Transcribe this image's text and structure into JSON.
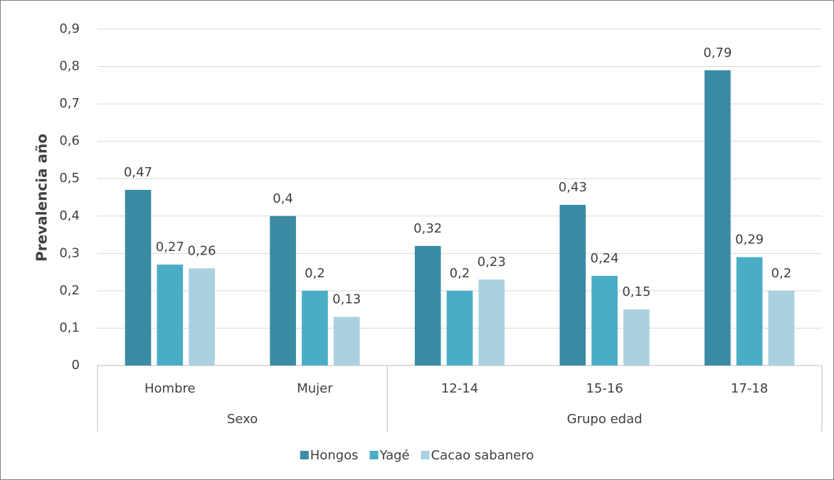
{
  "chart_data": {
    "type": "bar",
    "y_label": "Prevalencia año",
    "category_groups": [
      {
        "name": "Sexo",
        "categories": [
          "Hombre",
          "Mujer"
        ]
      },
      {
        "name": "Grupo edad",
        "categories": [
          "12-14",
          "15-16",
          "17-18"
        ]
      }
    ],
    "series": [
      {
        "name": "Hongos",
        "color": "#3a8ba3",
        "values": [
          0.47,
          0.4,
          0.32,
          0.43,
          0.79
        ],
        "value_labels": [
          "0,47",
          "0,4",
          "0,32",
          "0,43",
          "0,79"
        ]
      },
      {
        "name": "Yagé",
        "color": "#4bacc6",
        "values": [
          0.27,
          0.2,
          0.2,
          0.24,
          0.29
        ],
        "value_labels": [
          "0,27",
          "0,2",
          "0,2",
          "0,24",
          "0,29"
        ]
      },
      {
        "name": "Cacao sabanero",
        "color": "#a9d1df",
        "values": [
          0.26,
          0.13,
          0.23,
          0.15,
          0.2
        ],
        "value_labels": [
          "0,26",
          "0,13",
          "0,23",
          "0,15",
          "0,2"
        ]
      }
    ],
    "ylim": [
      0,
      0.9
    ],
    "yticks": [
      0,
      {
        "value": 0.1,
        "label": "0,1"
      },
      {
        "value": 0.2,
        "label": "0,2"
      },
      {
        "value": 0.3,
        "label": "0,3"
      },
      {
        "value": 0.4,
        "label": "0,4"
      },
      {
        "value": 0.5,
        "label": "0,5"
      },
      {
        "value": 0.6,
        "label": "0,6"
      },
      {
        "value": 0.7,
        "label": "0,7"
      },
      {
        "value": 0.8,
        "label": "0,8"
      },
      {
        "value": 0.9,
        "label": "0,9"
      }
    ],
    "grid": true,
    "legend": "bottom"
  }
}
